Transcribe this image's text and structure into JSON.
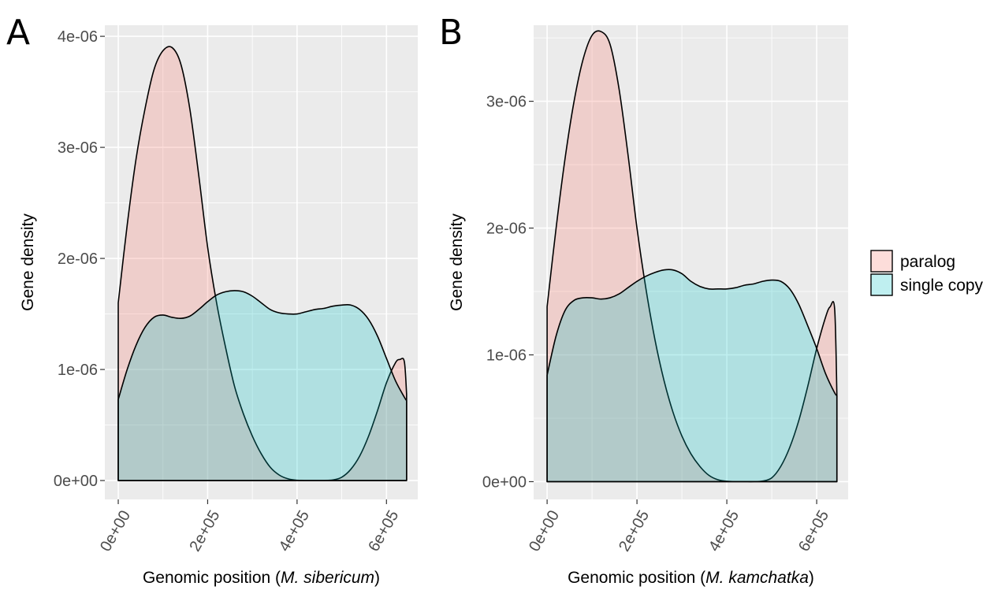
{
  "chart_data": [
    {
      "type": "area",
      "panel_label": "A",
      "xlabel": {
        "prefix": "Genomic position (",
        "species": "M. sibericum",
        "suffix": ")"
      },
      "ylabel": "Gene density",
      "xlim": [
        -30000,
        670000
      ],
      "ylim": [
        -1.7e-07,
        4.1e-06
      ],
      "x_ticks": [
        {
          "value": 0,
          "label": "0e+00"
        },
        {
          "value": 200000,
          "label": "2e+05"
        },
        {
          "value": 400000,
          "label": "4e+05"
        },
        {
          "value": 600000,
          "label": "6e+05"
        }
      ],
      "y_ticks": [
        {
          "value": 0,
          "label": "0e+00"
        },
        {
          "value": 1e-06,
          "label": "1e-06"
        },
        {
          "value": 2e-06,
          "label": "2e-06"
        },
        {
          "value": 3e-06,
          "label": "3e-06"
        },
        {
          "value": 4e-06,
          "label": "4e-06"
        }
      ],
      "grid": true,
      "series": [
        {
          "name": "paralog",
          "color": "#F8766D",
          "x": [
            0,
            20000,
            40000,
            60000,
            80000,
            100000,
            120000,
            140000,
            160000,
            180000,
            200000,
            220000,
            240000,
            260000,
            280000,
            300000,
            320000,
            340000,
            360000,
            380000,
            400000,
            420000,
            440000,
            460000,
            480000,
            500000,
            520000,
            540000,
            560000,
            580000,
            600000,
            620000,
            630000,
            640000,
            645000
          ],
          "y": [
            1.6e-06,
            2.3e-06,
            2.9e-06,
            3.35e-06,
            3.7e-06,
            3.87e-06,
            3.9e-06,
            3.75e-06,
            3.35e-06,
            2.75e-06,
            2.1e-06,
            1.6e-06,
            1.2e-06,
            8.5e-07,
            6e-07,
            4e-07,
            2.4e-07,
            1.2e-07,
            5e-08,
            1.5e-08,
            3e-09,
            0.0,
            0.0,
            0.0,
            5e-09,
            3e-08,
            1e-07,
            2.2e-07,
            4e-07,
            6.3e-07,
            8.8e-07,
            1.06e-06,
            1.09e-06,
            1.07e-06,
            7.8e-07
          ]
        },
        {
          "name": "single copy",
          "color": "#00BFC4",
          "x": [
            0,
            20000,
            40000,
            60000,
            80000,
            100000,
            120000,
            140000,
            160000,
            180000,
            200000,
            220000,
            240000,
            260000,
            280000,
            300000,
            320000,
            340000,
            360000,
            380000,
            400000,
            420000,
            440000,
            460000,
            480000,
            500000,
            520000,
            540000,
            560000,
            580000,
            600000,
            620000,
            640000,
            645000
          ],
          "y": [
            7.3e-07,
            1e-06,
            1.22e-06,
            1.38e-06,
            1.47e-06,
            1.49e-06,
            1.47e-06,
            1.46e-06,
            1.48e-06,
            1.54e-06,
            1.61e-06,
            1.67e-06,
            1.7e-06,
            1.71e-06,
            1.7e-06,
            1.66e-06,
            1.6e-06,
            1.54e-06,
            1.51e-06,
            1.5e-06,
            1.5e-06,
            1.52e-06,
            1.54e-06,
            1.55e-06,
            1.57e-06,
            1.58e-06,
            1.58e-06,
            1.54e-06,
            1.45e-06,
            1.3e-06,
            1.1e-06,
            9e-07,
            7.5e-07,
            7.2e-07
          ]
        }
      ]
    },
    {
      "type": "area",
      "panel_label": "B",
      "xlabel": {
        "prefix": "Genomic position (",
        "species": "M. kamchatka",
        "suffix": ")"
      },
      "ylabel": "Gene density",
      "xlim": [
        -30000,
        670000
      ],
      "ylim": [
        -1.4e-07,
        3.6e-06
      ],
      "x_ticks": [
        {
          "value": 0,
          "label": "0e+00"
        },
        {
          "value": 200000,
          "label": "2e+05"
        },
        {
          "value": 400000,
          "label": "4e+05"
        },
        {
          "value": 600000,
          "label": "6e+05"
        }
      ],
      "y_ticks": [
        {
          "value": 0,
          "label": "0e+00"
        },
        {
          "value": 1e-06,
          "label": "1e-06"
        },
        {
          "value": 2e-06,
          "label": "2e-06"
        },
        {
          "value": 3e-06,
          "label": "3e-06"
        }
      ],
      "grid": true,
      "series": [
        {
          "name": "paralog",
          "color": "#F8766D",
          "x": [
            0,
            20000,
            40000,
            60000,
            80000,
            100000,
            120000,
            140000,
            160000,
            180000,
            200000,
            220000,
            240000,
            260000,
            280000,
            300000,
            320000,
            340000,
            360000,
            380000,
            400000,
            420000,
            440000,
            460000,
            480000,
            500000,
            520000,
            540000,
            560000,
            580000,
            600000,
            620000,
            630000,
            640000,
            645000
          ],
          "y": [
            1.38e-06,
            2e-06,
            2.55e-06,
            3e-06,
            3.33e-06,
            3.52e-06,
            3.55e-06,
            3.45e-06,
            3.1e-06,
            2.58e-06,
            2e-06,
            1.52e-06,
            1.12e-06,
            8e-07,
            5.5e-07,
            3.6e-07,
            2.2e-07,
            1.2e-07,
            5e-08,
            1.5e-08,
            3e-09,
            0.0,
            0.0,
            0.0,
            5e-09,
            3e-08,
            1.2e-07,
            2.7e-07,
            4.8e-07,
            7.5e-07,
            1.05e-06,
            1.3e-06,
            1.38e-06,
            1.36e-06,
            6.8e-07
          ]
        },
        {
          "name": "single copy",
          "color": "#00BFC4",
          "x": [
            0,
            20000,
            40000,
            60000,
            80000,
            100000,
            120000,
            140000,
            160000,
            180000,
            200000,
            220000,
            240000,
            260000,
            280000,
            300000,
            320000,
            340000,
            360000,
            380000,
            400000,
            420000,
            440000,
            460000,
            480000,
            500000,
            520000,
            540000,
            560000,
            580000,
            600000,
            620000,
            640000,
            645000
          ],
          "y": [
            8.4e-07,
            1.15e-06,
            1.35e-06,
            1.43e-06,
            1.45e-06,
            1.45e-06,
            1.44e-06,
            1.45e-06,
            1.48e-06,
            1.53e-06,
            1.58e-06,
            1.62e-06,
            1.65e-06,
            1.67e-06,
            1.67e-06,
            1.64e-06,
            1.58e-06,
            1.54e-06,
            1.52e-06,
            1.52e-06,
            1.52e-06,
            1.53e-06,
            1.55e-06,
            1.56e-06,
            1.58e-06,
            1.59e-06,
            1.58e-06,
            1.52e-06,
            1.4e-06,
            1.23e-06,
            1.05e-06,
            8.5e-07,
            7e-07,
            6.8e-07
          ]
        }
      ]
    }
  ],
  "legend": {
    "placement": "right",
    "items": [
      {
        "label": "paralog",
        "color": "#F8766D"
      },
      {
        "label": "single copy",
        "color": "#00BFC4"
      }
    ]
  }
}
